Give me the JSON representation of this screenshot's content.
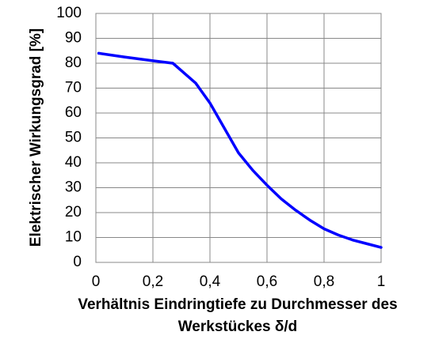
{
  "chart_data": {
    "type": "line",
    "xlabel": [
      "Verhältnis Eindringtiefe zu Durchmesser des",
      "Werkstückes δ/d"
    ],
    "ylabel": "Elektrischer Wirkungsgrad [%]",
    "x": [
      0.01,
      0.1,
      0.2,
      0.27,
      0.3,
      0.35,
      0.4,
      0.45,
      0.5,
      0.55,
      0.6,
      0.65,
      0.7,
      0.75,
      0.8,
      0.85,
      0.9,
      0.95,
      1
    ],
    "series": [
      {
        "color": "#0000ff",
        "values": [
          84,
          82.5,
          81,
          80,
          77,
          72,
          64,
          54,
          44,
          37,
          31,
          25.5,
          21,
          17,
          13.5,
          11,
          9,
          7.5,
          6
        ]
      }
    ],
    "xlim": [
      0,
      1
    ],
    "xticks": [
      0,
      {
        "value": 0.2,
        "label": "0,2"
      },
      {
        "value": 0.4,
        "label": "0,4"
      },
      {
        "value": 0.6,
        "label": "0,6"
      },
      {
        "value": 0.8,
        "label": "0,8"
      },
      1
    ],
    "ylim": [
      0,
      100
    ],
    "yticks": [
      0,
      10,
      20,
      30,
      40,
      50,
      60,
      70,
      80,
      90,
      100
    ],
    "grid": true
  }
}
